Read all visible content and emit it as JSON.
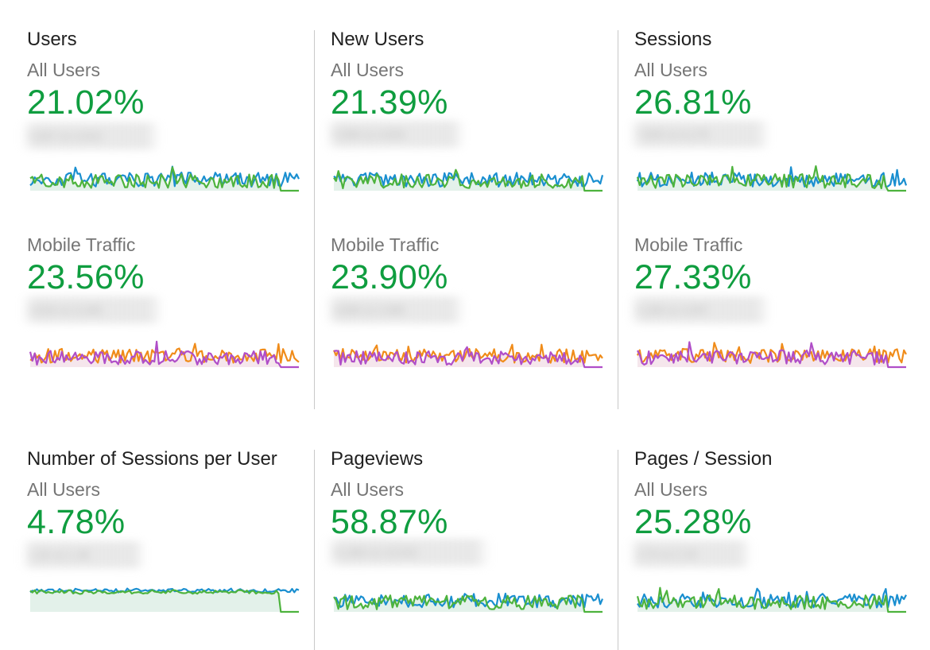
{
  "cards": [
    {
      "title": "Users",
      "segment1": "All Users",
      "pct1": "21.02%",
      "compare1": "5,947 vs 4,914",
      "spark1": {
        "primary": "#1a8fd0",
        "secondary": "#4db33d",
        "fill": "#e3f1ea",
        "end_drop": true
      },
      "segment2": "Mobile Traffic",
      "pct2": "23.56%",
      "compare2": "3,916 vs 3,169",
      "spark2": {
        "primary": "#f08c1a",
        "secondary": "#b04ec8",
        "fill": "#f5e6ec",
        "end_drop": true
      }
    },
    {
      "title": "New Users",
      "segment1": "All Users",
      "pct1": "21.39%",
      "compare1": "5,589 vs 4,604",
      "spark1": {
        "primary": "#1a8fd0",
        "secondary": "#4db33d",
        "fill": "#e3f1ea",
        "end_drop": true
      },
      "segment2": "Mobile Traffic",
      "pct2": "23.90%",
      "compare2": "3,698 vs 2,985",
      "spark2": {
        "primary": "#f08c1a",
        "secondary": "#b04ec8",
        "fill": "#f5e6ec",
        "end_drop": true
      }
    },
    {
      "title": "Sessions",
      "segment1": "All Users",
      "pct1": "26.81%",
      "compare1": "7,830 vs 6,175",
      "spark1": {
        "primary": "#1a8fd0",
        "secondary": "#4db33d",
        "fill": "#e3f1ea",
        "end_drop": true
      },
      "segment2": "Mobile Traffic",
      "pct2": "27.33%",
      "compare2": "5,166 vs 4,057",
      "spark2": {
        "primary": "#f08c1a",
        "secondary": "#b04ec8",
        "fill": "#f5e6ec",
        "end_drop": true
      }
    },
    {
      "title": "Number of Sessions per User",
      "segment1": "All Users",
      "pct1": "4.78%",
      "compare1": "1.32 vs 1.26",
      "spark1": {
        "primary": "#1a8fd0",
        "secondary": "#4db33d",
        "fill": "#e3f1ea",
        "end_drop": true,
        "flat": true
      }
    },
    {
      "title": "Pageviews",
      "segment1": "All Users",
      "pct1": "58.87%",
      "compare1": "21,483 vs 13,522",
      "spark1": {
        "primary": "#1a8fd0",
        "secondary": "#4db33d",
        "fill": "#e3f1ea",
        "end_drop": true
      }
    },
    {
      "title": "Pages / Session",
      "segment1": "All Users",
      "pct1": "25.28%",
      "compare1": "2.74 vs 2.19",
      "spark1": {
        "primary": "#1a8fd0",
        "secondary": "#4db33d",
        "fill": "#e3f1ea",
        "end_drop": true
      }
    }
  ]
}
